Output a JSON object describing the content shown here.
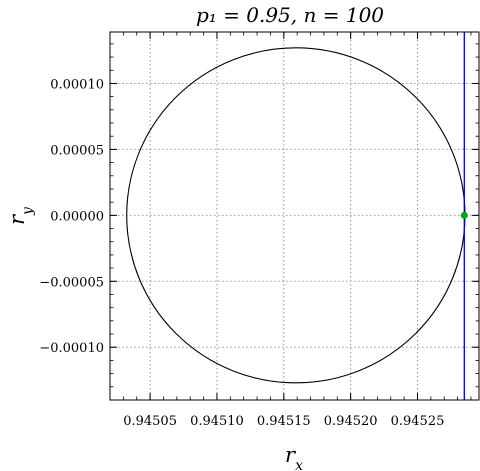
{
  "chart_data": {
    "type": "scatter",
    "title": "p₁ = 0.95, n = 100",
    "xlabel": "r_x",
    "ylabel": "r_y",
    "xlim": [
      0.94502,
      0.945296
    ],
    "ylim": [
      -0.00014,
      0.000139
    ],
    "grid": true,
    "x_ticks": [
      0.94505,
      0.9451,
      0.94515,
      0.9452,
      0.94525
    ],
    "x_tick_labels": [
      "0.94505",
      "0.94510",
      "0.94515",
      "0.94520",
      "0.94525"
    ],
    "y_ticks": [
      0.0001,
      5e-05,
      0.0,
      -5e-05,
      -0.0001
    ],
    "y_tick_labels": [
      "0.00010",
      "0.00005",
      "0.00000",
      "−0.00005",
      "−0.00010"
    ],
    "circle": {
      "center_x": 0.945159,
      "center_y": 0.0,
      "radius_x": 0.0001265,
      "radius_y": 0.000127,
      "color": "#000000"
    },
    "vertical_line": {
      "x": 0.945285,
      "color": "#0000cc"
    },
    "point": {
      "x": 0.945285,
      "y": 0.0,
      "color": "#00aa00"
    }
  }
}
